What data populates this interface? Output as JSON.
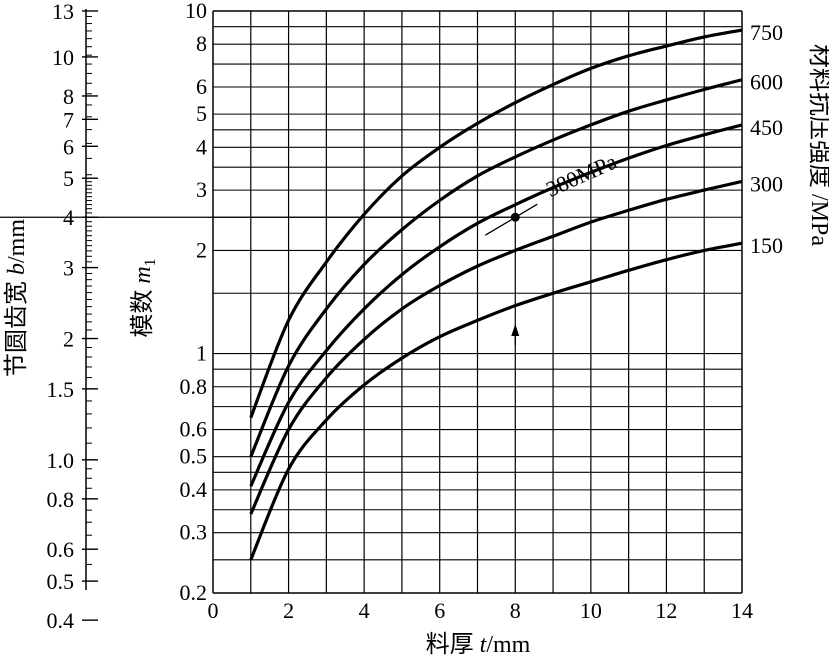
{
  "chart_data": {
    "type": "line",
    "x_axis": {
      "label_prefix": "料厚 ",
      "label_var": "t",
      "label_suffix": "/mm",
      "range": [
        0,
        14
      ],
      "ticks": [
        0,
        2,
        4,
        6,
        8,
        10,
        12,
        14
      ],
      "tick_labels": [
        "0",
        "2",
        "4",
        "6",
        "8",
        "10",
        "12",
        "14"
      ]
    },
    "y_axis": {
      "scale": "log",
      "label_prefix": "模数 ",
      "label_var": "m",
      "label_sub": "1",
      "range": [
        0.2,
        10
      ],
      "ticks": [
        0.2,
        0.3,
        0.4,
        0.5,
        0.6,
        0.8,
        1,
        2,
        3,
        4,
        5,
        6,
        8,
        10
      ],
      "tick_labels": [
        "0.2",
        "0.3",
        "0.4",
        "0.5",
        "0.6",
        "0.8",
        "1",
        "2",
        "3",
        "4",
        "5",
        "6",
        "8",
        "10"
      ]
    },
    "b_axis": {
      "scale": "log",
      "label_prefix": "节圆齿宽 ",
      "label_var": "b",
      "label_suffix": "/mm",
      "ticks": [
        0.4,
        0.5,
        0.6,
        0.8,
        1.0,
        1.5,
        2,
        3,
        4,
        5,
        6,
        7,
        8,
        10,
        13
      ],
      "tick_labels": [
        "0.4",
        "0.5",
        "0.6",
        "0.8",
        "1.0",
        "1.5",
        "2",
        "3",
        "4",
        "5",
        "6",
        "7",
        "8",
        "10",
        "13"
      ]
    },
    "series_axis_label": "材料抗压强度 /MPa",
    "x": [
      1,
      2,
      3,
      4,
      5,
      6,
      7,
      8,
      9,
      10,
      11,
      12,
      13,
      14
    ],
    "series": [
      {
        "name": "750",
        "values": [
          0.65,
          1.25,
          1.85,
          2.55,
          3.3,
          4.0,
          4.7,
          5.4,
          6.1,
          6.8,
          7.4,
          7.9,
          8.4,
          8.8
        ]
      },
      {
        "name": "600",
        "values": [
          0.5,
          0.92,
          1.35,
          1.82,
          2.3,
          2.8,
          3.3,
          3.75,
          4.2,
          4.65,
          5.1,
          5.5,
          5.9,
          6.3
        ]
      },
      {
        "name": "450",
        "values": [
          0.41,
          0.72,
          1.02,
          1.35,
          1.7,
          2.05,
          2.4,
          2.72,
          3.05,
          3.38,
          3.72,
          4.05,
          4.35,
          4.65
        ]
      },
      {
        "name": "300",
        "values": [
          0.34,
          0.6,
          0.85,
          1.1,
          1.35,
          1.58,
          1.8,
          2.0,
          2.2,
          2.42,
          2.62,
          2.82,
          3.0,
          3.18
        ]
      },
      {
        "name": "150",
        "values": [
          0.25,
          0.46,
          0.64,
          0.81,
          0.97,
          1.12,
          1.25,
          1.38,
          1.5,
          1.62,
          1.75,
          1.88,
          2.0,
          2.1
        ]
      }
    ],
    "annotation": {
      "text": "380MPa",
      "point": {
        "x": 8,
        "y": 2.5
      },
      "arrow_at_x": 8
    },
    "reference_line": {
      "b": 4,
      "m": 2.5
    },
    "grid": true
  }
}
